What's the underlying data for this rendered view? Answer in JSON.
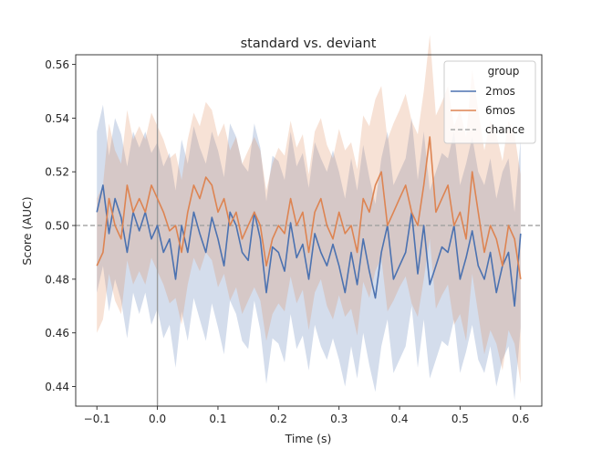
{
  "chart_data": {
    "type": "line",
    "title": "standard vs. deviant",
    "xlabel": "Time (s)",
    "ylabel": "Score (AUC)",
    "xlim": [
      -0.135,
      0.635
    ],
    "ylim": [
      0.4327,
      0.5636
    ],
    "x_ticks": [
      -0.1,
      0.0,
      0.1,
      0.2,
      0.3,
      0.4,
      0.5,
      0.6
    ],
    "x_tick_labels": [
      "−0.1",
      "0.0",
      "0.1",
      "0.2",
      "0.3",
      "0.4",
      "0.5",
      "0.6"
    ],
    "y_ticks": [
      0.44,
      0.46,
      0.48,
      0.5,
      0.52,
      0.54,
      0.56
    ],
    "y_tick_labels": [
      "0.44",
      "0.46",
      "0.48",
      "0.50",
      "0.52",
      "0.54",
      "0.56"
    ],
    "grid": false,
    "legend": {
      "title": "group",
      "placement": "top-right",
      "entries": [
        {
          "label": "2mos",
          "style": "solid",
          "color": "#4c72b0"
        },
        {
          "label": "6mos",
          "style": "solid",
          "color": "#dd8452"
        },
        {
          "label": "chance",
          "style": "dashed",
          "color": "#aaaaaa"
        }
      ]
    },
    "reference_lines": {
      "chance_y": 0.5,
      "onset_x": 0.0
    },
    "series": [
      {
        "name": "2mos",
        "color": "#4c72b0",
        "x": [
          -0.1,
          -0.09,
          -0.08,
          -0.07,
          -0.06,
          -0.05,
          -0.04,
          -0.03,
          -0.02,
          -0.01,
          0.0,
          0.01,
          0.02,
          0.03,
          0.04,
          0.05,
          0.06,
          0.07,
          0.08,
          0.09,
          0.1,
          0.11,
          0.12,
          0.13,
          0.14,
          0.15,
          0.16,
          0.17,
          0.18,
          0.19,
          0.2,
          0.21,
          0.22,
          0.23,
          0.24,
          0.25,
          0.26,
          0.27,
          0.28,
          0.29,
          0.3,
          0.31,
          0.32,
          0.33,
          0.34,
          0.35,
          0.36,
          0.37,
          0.38,
          0.39,
          0.4,
          0.41,
          0.42,
          0.43,
          0.44,
          0.45,
          0.46,
          0.47,
          0.48,
          0.49,
          0.5,
          0.51,
          0.52,
          0.53,
          0.54,
          0.55,
          0.56,
          0.57,
          0.58,
          0.59,
          0.6
        ],
        "y": [
          0.505,
          0.515,
          0.497,
          0.51,
          0.503,
          0.49,
          0.505,
          0.498,
          0.505,
          0.495,
          0.5,
          0.49,
          0.495,
          0.48,
          0.5,
          0.49,
          0.505,
          0.497,
          0.49,
          0.503,
          0.495,
          0.485,
          0.505,
          0.5,
          0.49,
          0.487,
          0.505,
          0.495,
          0.475,
          0.492,
          0.49,
          0.483,
          0.501,
          0.488,
          0.493,
          0.48,
          0.497,
          0.49,
          0.485,
          0.493,
          0.485,
          0.475,
          0.49,
          0.478,
          0.495,
          0.483,
          0.473,
          0.49,
          0.5,
          0.48,
          0.485,
          0.49,
          0.505,
          0.482,
          0.5,
          0.478,
          0.485,
          0.492,
          0.49,
          0.5,
          0.48,
          0.488,
          0.498,
          0.485,
          0.48,
          0.49,
          0.475,
          0.485,
          0.49,
          0.47,
          0.497
        ],
        "ci_low": [
          0.475,
          0.485,
          0.468,
          0.48,
          0.472,
          0.458,
          0.475,
          0.467,
          0.475,
          0.463,
          0.469,
          0.458,
          0.463,
          0.447,
          0.468,
          0.457,
          0.473,
          0.465,
          0.457,
          0.471,
          0.462,
          0.452,
          0.472,
          0.467,
          0.457,
          0.454,
          0.472,
          0.461,
          0.441,
          0.458,
          0.456,
          0.449,
          0.467,
          0.454,
          0.459,
          0.446,
          0.463,
          0.455,
          0.45,
          0.458,
          0.45,
          0.44,
          0.455,
          0.443,
          0.46,
          0.448,
          0.438,
          0.455,
          0.465,
          0.445,
          0.45,
          0.455,
          0.47,
          0.447,
          0.465,
          0.443,
          0.45,
          0.457,
          0.455,
          0.465,
          0.445,
          0.453,
          0.463,
          0.45,
          0.445,
          0.455,
          0.44,
          0.45,
          0.455,
          0.435,
          0.462
        ],
        "ci_high": [
          0.535,
          0.545,
          0.526,
          0.54,
          0.534,
          0.522,
          0.535,
          0.529,
          0.535,
          0.527,
          0.531,
          0.522,
          0.527,
          0.513,
          0.532,
          0.523,
          0.537,
          0.529,
          0.523,
          0.535,
          0.528,
          0.518,
          0.538,
          0.533,
          0.523,
          0.52,
          0.538,
          0.529,
          0.509,
          0.526,
          0.524,
          0.517,
          0.535,
          0.522,
          0.527,
          0.514,
          0.531,
          0.525,
          0.52,
          0.528,
          0.52,
          0.51,
          0.525,
          0.513,
          0.53,
          0.518,
          0.508,
          0.525,
          0.535,
          0.515,
          0.52,
          0.525,
          0.54,
          0.517,
          0.535,
          0.513,
          0.52,
          0.527,
          0.525,
          0.535,
          0.515,
          0.523,
          0.533,
          0.52,
          0.515,
          0.525,
          0.51,
          0.52,
          0.525,
          0.505,
          0.532
        ]
      },
      {
        "name": "6mos",
        "color": "#dd8452",
        "x": [
          -0.1,
          -0.09,
          -0.08,
          -0.07,
          -0.06,
          -0.05,
          -0.04,
          -0.03,
          -0.02,
          -0.01,
          0.0,
          0.01,
          0.02,
          0.03,
          0.04,
          0.05,
          0.06,
          0.07,
          0.08,
          0.09,
          0.1,
          0.11,
          0.12,
          0.13,
          0.14,
          0.15,
          0.16,
          0.17,
          0.18,
          0.19,
          0.2,
          0.21,
          0.22,
          0.23,
          0.24,
          0.25,
          0.26,
          0.27,
          0.28,
          0.29,
          0.3,
          0.31,
          0.32,
          0.33,
          0.34,
          0.35,
          0.36,
          0.37,
          0.38,
          0.39,
          0.4,
          0.41,
          0.42,
          0.43,
          0.44,
          0.45,
          0.46,
          0.47,
          0.48,
          0.49,
          0.5,
          0.51,
          0.52,
          0.53,
          0.54,
          0.55,
          0.56,
          0.57,
          0.58,
          0.59,
          0.6
        ],
        "y": [
          0.485,
          0.49,
          0.51,
          0.5,
          0.495,
          0.515,
          0.505,
          0.51,
          0.505,
          0.515,
          0.51,
          0.505,
          0.498,
          0.5,
          0.49,
          0.505,
          0.515,
          0.51,
          0.518,
          0.515,
          0.505,
          0.51,
          0.5,
          0.505,
          0.495,
          0.5,
          0.505,
          0.5,
          0.485,
          0.495,
          0.5,
          0.497,
          0.51,
          0.5,
          0.505,
          0.49,
          0.505,
          0.51,
          0.5,
          0.495,
          0.505,
          0.497,
          0.5,
          0.49,
          0.51,
          0.505,
          0.515,
          0.52,
          0.5,
          0.505,
          0.51,
          0.515,
          0.505,
          0.5,
          0.515,
          0.533,
          0.505,
          0.51,
          0.515,
          0.5,
          0.505,
          0.495,
          0.52,
          0.505,
          0.49,
          0.5,
          0.495,
          0.485,
          0.5,
          0.495,
          0.48
        ],
        "ci_low": [
          0.46,
          0.465,
          0.482,
          0.472,
          0.467,
          0.487,
          0.478,
          0.483,
          0.478,
          0.488,
          0.483,
          0.478,
          0.471,
          0.473,
          0.463,
          0.478,
          0.488,
          0.483,
          0.49,
          0.487,
          0.477,
          0.482,
          0.472,
          0.477,
          0.467,
          0.472,
          0.477,
          0.472,
          0.457,
          0.467,
          0.471,
          0.468,
          0.481,
          0.471,
          0.476,
          0.461,
          0.475,
          0.48,
          0.47,
          0.465,
          0.474,
          0.466,
          0.469,
          0.459,
          0.479,
          0.473,
          0.483,
          0.488,
          0.468,
          0.472,
          0.477,
          0.481,
          0.471,
          0.466,
          0.48,
          0.495,
          0.469,
          0.474,
          0.478,
          0.463,
          0.467,
          0.457,
          0.482,
          0.467,
          0.452,
          0.461,
          0.456,
          0.446,
          0.461,
          0.456,
          0.441
        ],
        "ci_high": [
          0.51,
          0.515,
          0.538,
          0.528,
          0.523,
          0.543,
          0.532,
          0.537,
          0.532,
          0.542,
          0.537,
          0.532,
          0.525,
          0.527,
          0.517,
          0.532,
          0.542,
          0.537,
          0.546,
          0.543,
          0.533,
          0.538,
          0.528,
          0.533,
          0.523,
          0.528,
          0.533,
          0.528,
          0.513,
          0.523,
          0.529,
          0.526,
          0.539,
          0.529,
          0.534,
          0.519,
          0.535,
          0.54,
          0.53,
          0.525,
          0.536,
          0.528,
          0.531,
          0.521,
          0.541,
          0.537,
          0.547,
          0.552,
          0.532,
          0.538,
          0.543,
          0.549,
          0.539,
          0.534,
          0.55,
          0.571,
          0.541,
          0.546,
          0.552,
          0.537,
          0.543,
          0.533,
          0.558,
          0.543,
          0.528,
          0.539,
          0.534,
          0.524,
          0.539,
          0.534,
          0.519
        ]
      }
    ]
  }
}
